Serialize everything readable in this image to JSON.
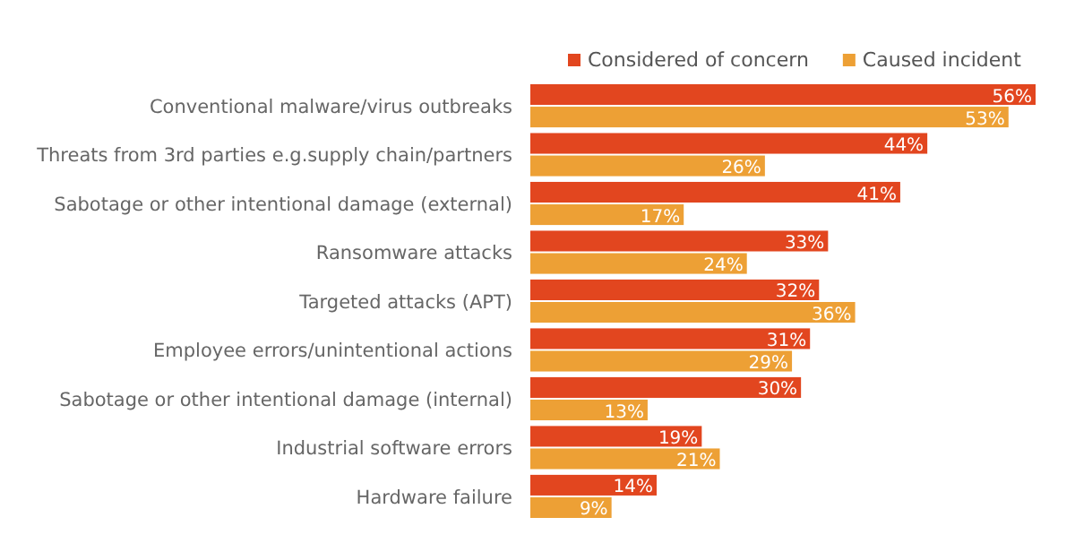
{
  "chart_data": {
    "type": "bar",
    "orientation": "horizontal",
    "categories": [
      "Conventional malware/virus outbreaks",
      "Threats from 3rd parties e.g.supply chain/partners",
      "Sabotage or other intentional damage (external)",
      "Ransomware attacks",
      "Targeted attacks (APT)",
      "Employee errors/unintentional actions",
      "Sabotage or other intentional damage (internal)",
      "Industrial software errors",
      "Hardware failure"
    ],
    "series": [
      {
        "name": "Considered of concern",
        "color": "#e2461f",
        "values": [
          56,
          44,
          41,
          33,
          32,
          31,
          30,
          19,
          14
        ],
        "value_labels": [
          "56%",
          "44%",
          "41%",
          "33%",
          "32%",
          "31%",
          "30%",
          "19%",
          "14%"
        ]
      },
      {
        "name": "Caused incident",
        "color": "#eda035",
        "values": [
          53,
          26,
          17,
          24,
          36,
          29,
          13,
          21,
          9
        ],
        "value_labels": [
          "53%",
          "26%",
          "17%",
          "24%",
          "36%",
          "29%",
          "13%",
          "21%",
          "9%"
        ]
      }
    ],
    "legend": "top right"
  }
}
